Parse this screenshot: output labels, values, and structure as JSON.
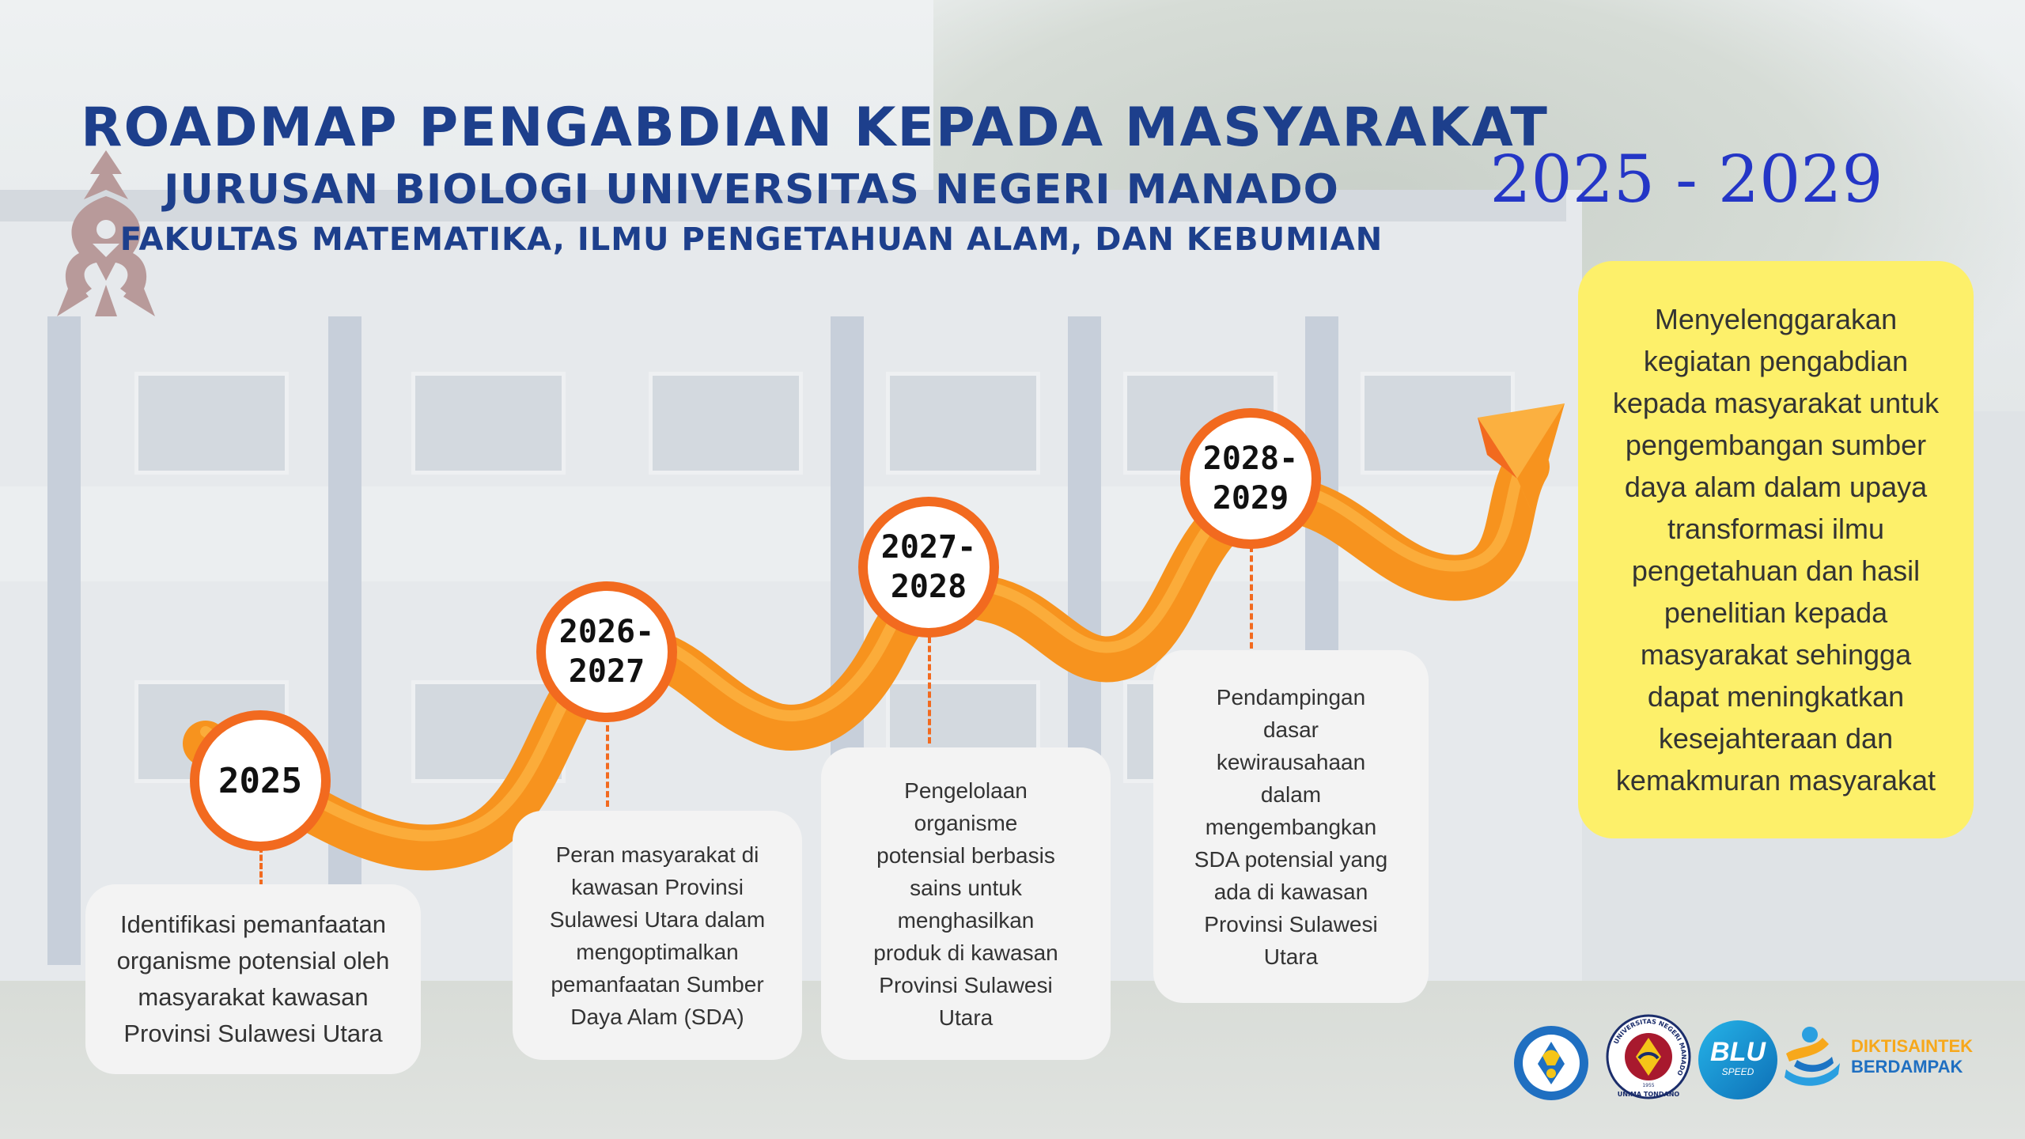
{
  "header": {
    "title": "ROADMAP PENGABDIAN KEPADA MASYARAKAT",
    "subtitle": "JURUSAN BIOLOGI UNIVERSITAS NEGERI MANADO",
    "faculty": "FAKULTAS MATEMATIKA, ILMU PENGETAHUAN ALAM, DAN KEBUMIAN",
    "period": "2025 - 2029"
  },
  "milestones": [
    {
      "year": "2025",
      "text": "Identifikasi pemanfaatan\norganisme potensial oleh\nmasyarakat  kawasan\nProvinsi Sulawesi Utara"
    },
    {
      "year": "2026-\n2027",
      "text": "Peran masyarakat di\nkawasan Provinsi\nSulawesi Utara dalam\nmengoptimalkan\npemanfaatan Sumber\nDaya Alam (SDA)"
    },
    {
      "year": "2027-\n2028",
      "text": "Pengelolaan\norganisme\npotensial berbasis\nsains untuk\nmenghasilkan\nproduk di kawasan\nProvinsi Sulawesi\nUtara"
    },
    {
      "year": "2028-\n2029",
      "text": "Pendampingan\ndasar\nkewirausahaan\ndalam\nmengembangkan\nSDA potensial yang\nada di kawasan\nProvinsi Sulawesi\nUtara"
    }
  ],
  "goal": {
    "text": "Menyelenggarakan\nkegiatan pengabdian\nkepada masyarakat untuk\npengembangan sumber\ndaya alam dalam upaya\ntransformasi ilmu\npengetahuan dan hasil\npenelitian kepada\nmasyarakat sehingga\ndapat meningkatkan\nkesejahteraan dan\nkemakmuran masyarakat"
  },
  "logos": {
    "unima_ring": "UNIVERSITAS NEGERI MANADO",
    "unima_bottom": "UNIMA TONDANO",
    "unima_year": "1955",
    "blu": "BLU",
    "blu_sub": "SPEED",
    "diktisaintek_1": "DIKTISAINTEK",
    "diktisaintek_2": "BERDAMPAK"
  },
  "colors": {
    "title": "#1d3f8c",
    "period": "#2436c6",
    "path": "#f7931e",
    "path_highlight": "#fbb040",
    "node_border": "#f26a1f",
    "goal_box": "#fdf06a",
    "text_box": "#f3f3f3"
  }
}
